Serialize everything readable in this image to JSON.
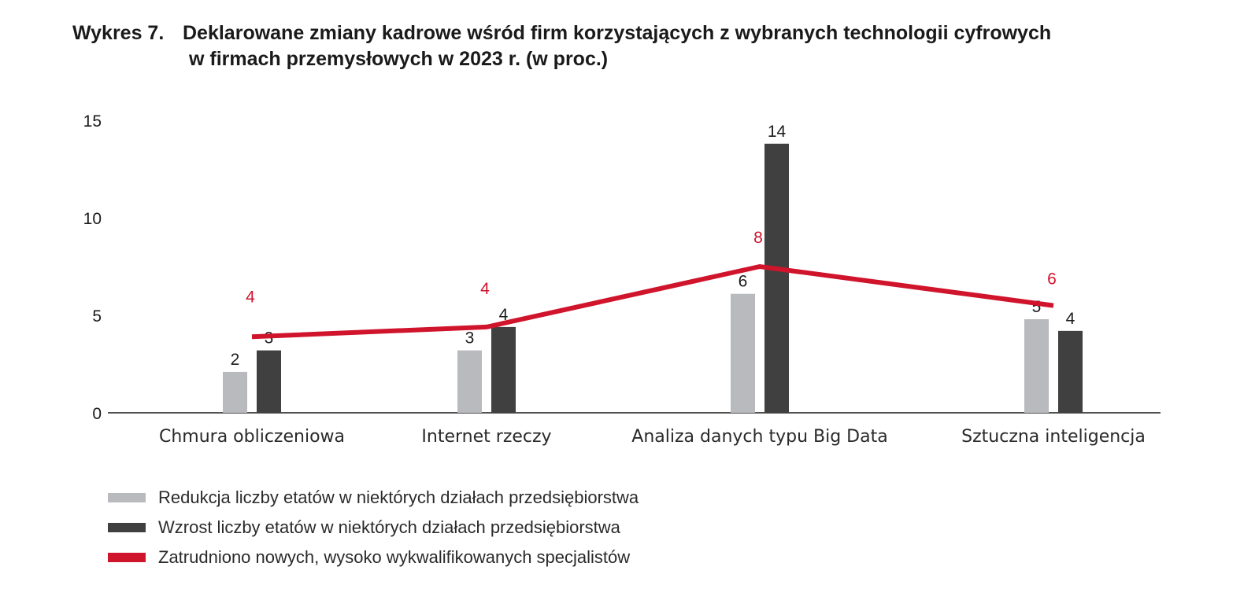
{
  "title": {
    "prefix": "Wykres 7.",
    "line1": "Deklarowane zmiany kadrowe wśród firm korzystających z wybranych technologii cyfrowych",
    "line2": "w firmach przemysłowych w 2023 r. (w proc.)"
  },
  "colors": {
    "reduction": "#b8babd",
    "increase": "#404040",
    "hired": "#d0142c",
    "axis": "#1a1a1a"
  },
  "chart_data": {
    "type": "bar",
    "categories": [
      "Chmura obliczeniowa",
      "Internet rzeczy",
      "Analiza danych typu Big Data",
      "Sztuczna inteligencja"
    ],
    "series": [
      {
        "name": "Redukcja liczby etatów w niektórych działach przedsiębiorstwa",
        "type": "bar",
        "values": [
          2.1,
          3.2,
          6.1,
          4.8
        ],
        "labels": [
          "2",
          "3",
          "6",
          "5"
        ]
      },
      {
        "name": "Wzrost liczby etatów w niektórych działach przedsiębiorstwa",
        "type": "bar",
        "values": [
          3.2,
          4.4,
          13.8,
          4.2
        ],
        "labels": [
          "3",
          "4",
          "14",
          "4"
        ]
      },
      {
        "name": "Zatrudniono nowych, wysoko wykwalifikowanych specjalistów",
        "type": "line",
        "values": [
          3.9,
          4.4,
          7.5,
          5.5
        ],
        "labels": [
          "4",
          "4",
          "8",
          "6"
        ]
      }
    ],
    "yticks": [
      0,
      5,
      10,
      15
    ],
    "ylim": [
      0,
      15
    ],
    "xlabel": "",
    "ylabel": "",
    "grid": false,
    "legend_position": "bottom"
  }
}
